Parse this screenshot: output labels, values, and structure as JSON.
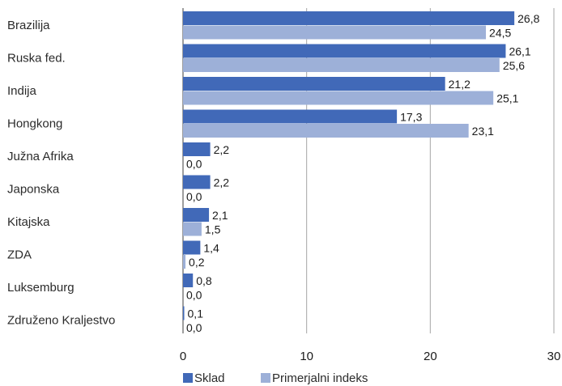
{
  "chart_data": {
    "type": "bar",
    "orientation": "horizontal",
    "categories": [
      "Brazilija",
      "Ruska fed.",
      "Indija",
      "Hongkong",
      "Južna Afrika",
      "Japonska",
      "Kitajska",
      "ZDA",
      "Luksemburg",
      "Združeno Kraljestvo"
    ],
    "series": [
      {
        "name": "Sklad",
        "color": "#4169b8",
        "values": [
          26.8,
          26.1,
          21.2,
          17.3,
          2.2,
          2.2,
          2.1,
          1.4,
          0.8,
          0.1
        ],
        "labels": [
          "26,8",
          "26,1",
          "21,2",
          "17,3",
          "2,2",
          "2,2",
          "2,1",
          "1,4",
          "0,8",
          "0,1"
        ]
      },
      {
        "name": "Primerjalni indeks",
        "color": "#9db0d8",
        "values": [
          24.5,
          25.6,
          25.1,
          23.1,
          0.0,
          0.0,
          1.5,
          0.2,
          0.0,
          0.0
        ],
        "labels": [
          "24,5",
          "25,6",
          "25,1",
          "23,1",
          "0,0",
          "0,0",
          "1,5",
          "0,2",
          "0,0",
          "0,0"
        ]
      }
    ],
    "xlim": [
      0,
      30
    ],
    "xticks": [
      0,
      10,
      20,
      30
    ],
    "grid": true,
    "legend": "bottom"
  }
}
